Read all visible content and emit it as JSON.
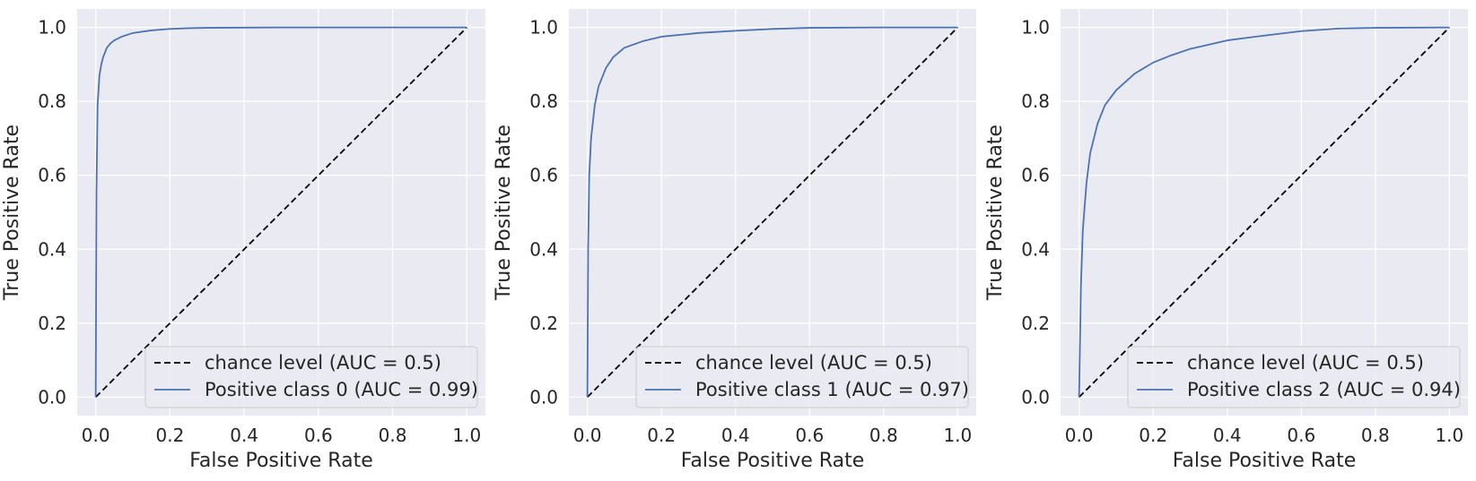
{
  "chart_data": [
    {
      "type": "line",
      "title": "",
      "xlabel": "False Positive Rate",
      "ylabel": "True Positive Rate",
      "xlim": [
        -0.05,
        1.05
      ],
      "ylim": [
        -0.05,
        1.05
      ],
      "xticks": [
        "0.0",
        "0.2",
        "0.4",
        "0.6",
        "0.8",
        "1.0"
      ],
      "yticks": [
        "0.0",
        "0.2",
        "0.4",
        "0.6",
        "0.8",
        "1.0"
      ],
      "grid": true,
      "legend_position": "bottom-right",
      "series": [
        {
          "name": "chance level (AUC = 0.5)",
          "style": "dashed",
          "color": "#000000",
          "x": [
            0,
            1
          ],
          "y": [
            0,
            1
          ]
        },
        {
          "name": "Positive class 0 (AUC = 0.99)",
          "style": "solid",
          "color": "#4c72b0",
          "x": [
            0,
            0.002,
            0.005,
            0.01,
            0.015,
            0.02,
            0.03,
            0.04,
            0.05,
            0.07,
            0.1,
            0.15,
            0.2,
            0.25,
            0.3,
            0.5,
            0.7,
            1.0
          ],
          "y": [
            0,
            0.55,
            0.79,
            0.87,
            0.9,
            0.92,
            0.945,
            0.957,
            0.965,
            0.975,
            0.985,
            0.992,
            0.996,
            0.998,
            0.999,
            1.0,
            1.0,
            1.0
          ]
        }
      ]
    },
    {
      "type": "line",
      "title": "",
      "xlabel": "False Positive Rate",
      "ylabel": "True Positive Rate",
      "xlim": [
        -0.05,
        1.05
      ],
      "ylim": [
        -0.05,
        1.05
      ],
      "xticks": [
        "0.0",
        "0.2",
        "0.4",
        "0.6",
        "0.8",
        "1.0"
      ],
      "yticks": [
        "0.0",
        "0.2",
        "0.4",
        "0.6",
        "0.8",
        "1.0"
      ],
      "grid": true,
      "legend_position": "bottom-right",
      "series": [
        {
          "name": "chance level (AUC = 0.5)",
          "style": "dashed",
          "color": "#000000",
          "x": [
            0,
            1
          ],
          "y": [
            0,
            1
          ]
        },
        {
          "name": "Positive class 1 (AUC = 0.97)",
          "style": "solid",
          "color": "#4c72b0",
          "x": [
            0,
            0.002,
            0.005,
            0.01,
            0.02,
            0.03,
            0.05,
            0.07,
            0.1,
            0.15,
            0.2,
            0.3,
            0.4,
            0.5,
            0.6,
            0.8,
            1.0
          ],
          "y": [
            0,
            0.4,
            0.6,
            0.7,
            0.79,
            0.84,
            0.89,
            0.92,
            0.945,
            0.963,
            0.975,
            0.985,
            0.991,
            0.996,
            0.999,
            1.0,
            1.0
          ]
        }
      ]
    },
    {
      "type": "line",
      "title": "",
      "xlabel": "False Positive Rate",
      "ylabel": "True Positive Rate",
      "xlim": [
        -0.05,
        1.05
      ],
      "ylim": [
        -0.05,
        1.05
      ],
      "xticks": [
        "0.0",
        "0.2",
        "0.4",
        "0.6",
        "0.8",
        "1.0"
      ],
      "yticks": [
        "0.0",
        "0.2",
        "0.4",
        "0.6",
        "0.8",
        "1.0"
      ],
      "grid": true,
      "legend_position": "bottom-right",
      "series": [
        {
          "name": "chance level (AUC = 0.5)",
          "style": "dashed",
          "color": "#000000",
          "x": [
            0,
            1
          ],
          "y": [
            0,
            1
          ]
        },
        {
          "name": "Positive class 2 (AUC = 0.94)",
          "style": "solid",
          "color": "#4c72b0",
          "x": [
            0,
            0.005,
            0.01,
            0.02,
            0.03,
            0.05,
            0.07,
            0.1,
            0.15,
            0.2,
            0.25,
            0.3,
            0.4,
            0.5,
            0.6,
            0.7,
            0.8,
            1.0
          ],
          "y": [
            0,
            0.3,
            0.45,
            0.58,
            0.66,
            0.74,
            0.79,
            0.83,
            0.875,
            0.905,
            0.925,
            0.942,
            0.965,
            0.978,
            0.99,
            0.997,
            0.999,
            1.0
          ]
        }
      ]
    }
  ],
  "colors": {
    "panel_background": "#eaeaf2",
    "grid": "#ffffff",
    "roc_line": "#4c72b0",
    "chance_line": "#000000",
    "text": "#262626"
  }
}
